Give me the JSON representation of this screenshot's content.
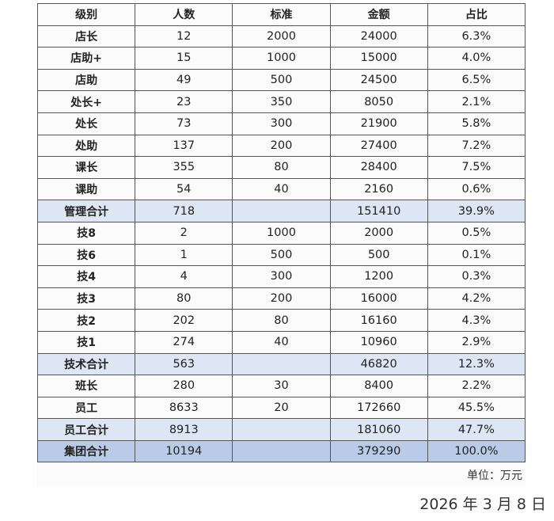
{
  "headers": [
    "级别",
    "人数",
    "标准",
    "金额",
    "占比"
  ],
  "rows": [
    {
      "type": "normal",
      "cells": [
        "店长",
        "12",
        "2000",
        "24000",
        "6.3%"
      ]
    },
    {
      "type": "normal",
      "cells": [
        "店助+",
        "15",
        "1000",
        "15000",
        "4.0%"
      ]
    },
    {
      "type": "normal",
      "cells": [
        "店助",
        "49",
        "500",
        "24500",
        "6.5%"
      ]
    },
    {
      "type": "normal",
      "cells": [
        "处长+",
        "23",
        "350",
        "8050",
        "2.1%"
      ]
    },
    {
      "type": "normal",
      "cells": [
        "处长",
        "73",
        "300",
        "21900",
        "5.8%"
      ]
    },
    {
      "type": "normal",
      "cells": [
        "处助",
        "137",
        "200",
        "27400",
        "7.2%"
      ]
    },
    {
      "type": "normal",
      "cells": [
        "课长",
        "355",
        "80",
        "28400",
        "7.5%"
      ]
    },
    {
      "type": "normal",
      "cells": [
        "课助",
        "54",
        "40",
        "2160",
        "0.6%"
      ]
    },
    {
      "type": "sub",
      "cells": [
        "管理合计",
        "718",
        "",
        "151410",
        "39.9%"
      ]
    },
    {
      "type": "normal",
      "cells": [
        "技8",
        "2",
        "1000",
        "2000",
        "0.5%"
      ]
    },
    {
      "type": "normal",
      "cells": [
        "技6",
        "1",
        "500",
        "500",
        "0.1%"
      ]
    },
    {
      "type": "normal",
      "cells": [
        "技4",
        "4",
        "300",
        "1200",
        "0.3%"
      ]
    },
    {
      "type": "normal",
      "cells": [
        "技3",
        "80",
        "200",
        "16000",
        "4.2%"
      ]
    },
    {
      "type": "normal",
      "cells": [
        "技2",
        "202",
        "80",
        "16160",
        "4.3%"
      ]
    },
    {
      "type": "normal",
      "cells": [
        "技1",
        "274",
        "40",
        "10960",
        "2.9%"
      ]
    },
    {
      "type": "sub",
      "cells": [
        "技术合计",
        "563",
        "",
        "46820",
        "12.3%"
      ]
    },
    {
      "type": "normal",
      "cells": [
        "班长",
        "280",
        "30",
        "8400",
        "2.2%"
      ]
    },
    {
      "type": "normal",
      "cells": [
        "员工",
        "8633",
        "20",
        "172660",
        "45.5%"
      ]
    },
    {
      "type": "sub",
      "cells": [
        "员工合计",
        "8913",
        "",
        "181060",
        "47.7%"
      ]
    },
    {
      "type": "total",
      "cells": [
        "集团合计",
        "10194",
        "",
        "379290",
        "100.0%"
      ]
    }
  ],
  "unit_note": "单位：万元",
  "date": "2026 年 3 月 8 日",
  "colors": {
    "subtotal_bg": "#dde6f4",
    "total_bg": "#b9cbe6",
    "border": "#555555"
  }
}
